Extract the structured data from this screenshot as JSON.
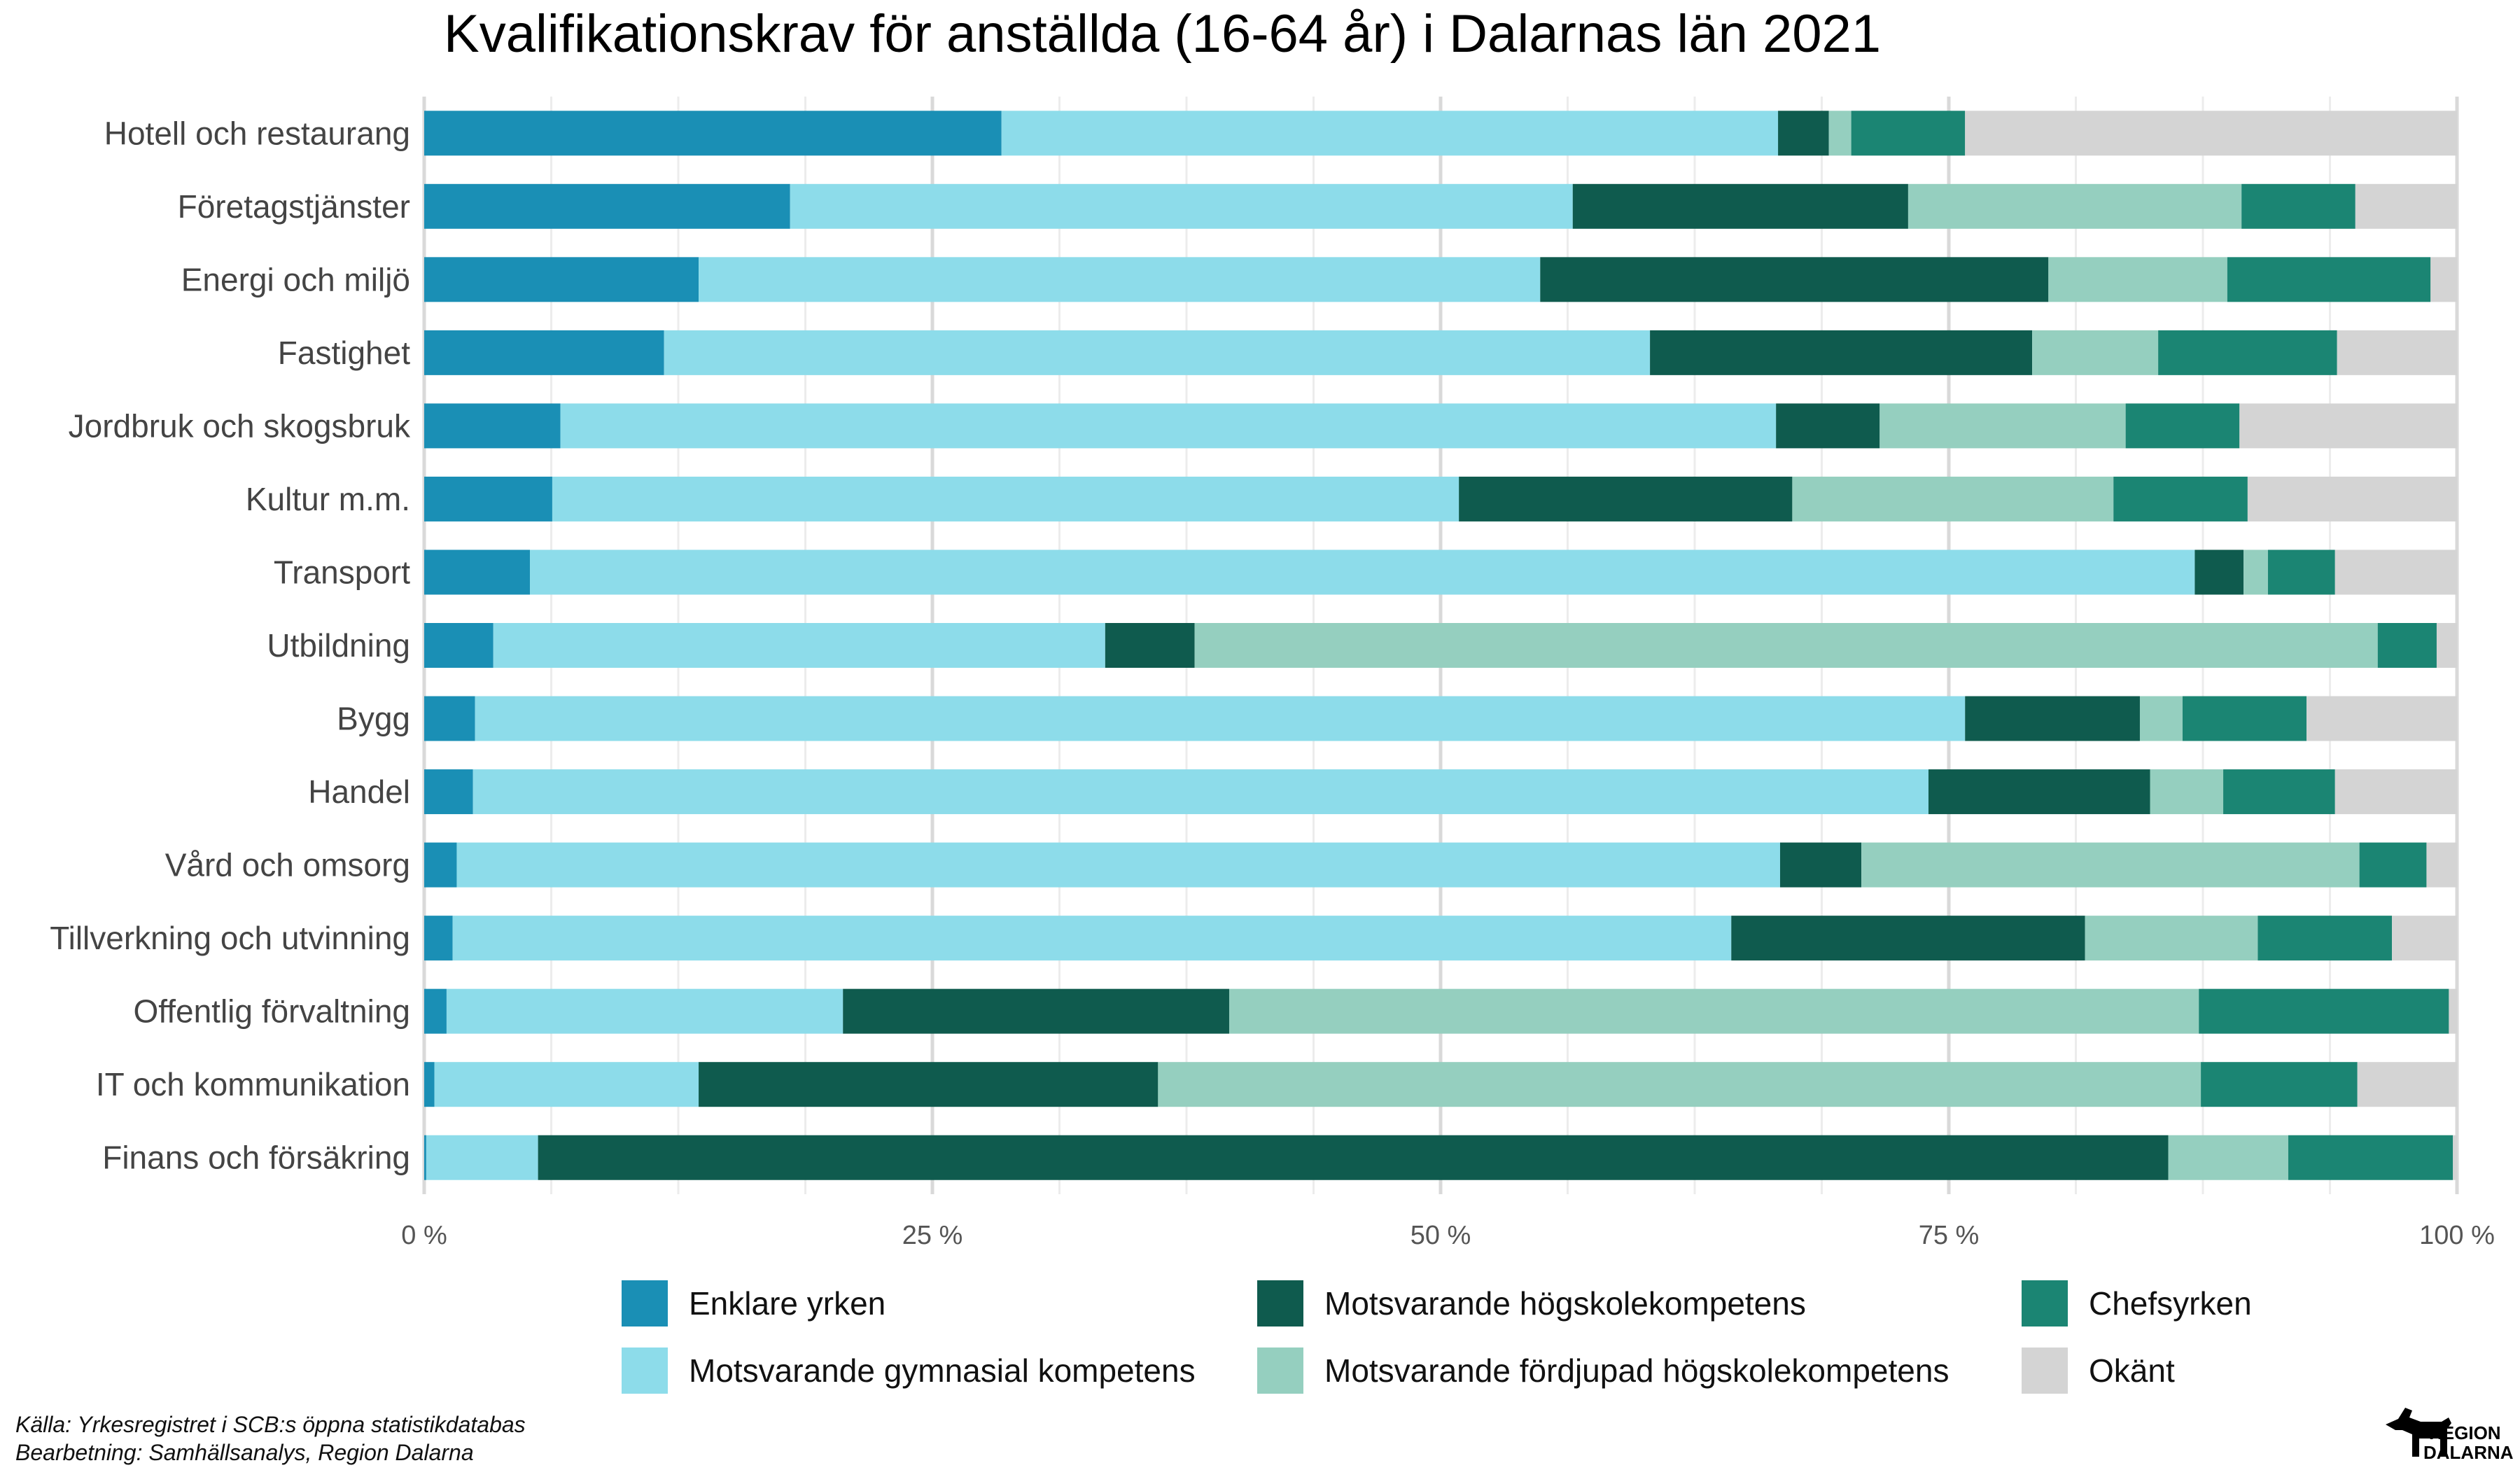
{
  "chart_data": {
    "type": "bar",
    "orientation": "horizontal",
    "stacked": true,
    "title": "Kvalifikationskrav för anställda (16-64 år) i Dalarnas län 2021",
    "xlabel": "",
    "ylabel": "",
    "xlim": [
      0,
      100
    ],
    "x_ticks": [
      "0 %",
      "25 %",
      "50 %",
      "75 %",
      "100 %"
    ],
    "grid": true,
    "legend_position": "bottom",
    "categories": [
      "Hotell och restaurang",
      "Företagstjänster",
      "Energi och miljö",
      "Fastighet",
      "Jordbruk och skogsbruk",
      "Kultur m.m.",
      "Transport",
      "Utbildning",
      "Bygg",
      "Handel",
      "Vård och omsorg",
      "Tillverkning och utvinning",
      "Offentlig förvaltning",
      "IT och kommunikation",
      "Finans och försäkring"
    ],
    "series": [
      {
        "name": "Enklare yrken",
        "color": "#1a8fb5",
        "values": [
          28.4,
          18.0,
          13.5,
          11.8,
          6.7,
          6.3,
          5.2,
          3.4,
          2.5,
          2.4,
          1.6,
          1.4,
          1.1,
          0.5,
          0.1
        ]
      },
      {
        "name": "Motsvarande gymnasial kompetens",
        "color": "#8ddcea",
        "values": [
          38.2,
          38.5,
          41.4,
          48.5,
          59.8,
          44.6,
          81.9,
          30.1,
          73.3,
          71.6,
          65.1,
          62.9,
          19.5,
          13.0,
          5.5
        ]
      },
      {
        "name": "Motsvarande högskolekompetens",
        "color": "#0f5b4e",
        "values": [
          2.5,
          16.5,
          25.0,
          18.8,
          5.1,
          16.4,
          2.4,
          4.4,
          8.6,
          10.9,
          4.0,
          17.4,
          19.0,
          22.6,
          80.2
        ]
      },
      {
        "name": "Motsvarande fördjupad högskolekompetens",
        "color": "#95cfbf",
        "values": [
          1.1,
          16.4,
          8.8,
          6.2,
          12.1,
          15.8,
          1.2,
          58.2,
          2.1,
          3.6,
          24.5,
          8.5,
          47.7,
          51.3,
          5.9
        ]
      },
      {
        "name": "Chefsyrken",
        "color": "#1b8573",
        "values": [
          5.6,
          5.6,
          10.0,
          8.8,
          5.6,
          6.6,
          3.3,
          2.9,
          6.1,
          5.5,
          3.3,
          6.6,
          12.3,
          7.7,
          8.1
        ]
      },
      {
        "name": "Okänt",
        "color": "#d4d4d4",
        "values": [
          24.2,
          5.0,
          1.3,
          5.9,
          10.7,
          10.3,
          6.0,
          1.0,
          7.4,
          6.0,
          1.5,
          3.2,
          0.4,
          4.9,
          0.2
        ]
      }
    ]
  },
  "source": {
    "line1": "Källa: Yrkesregistret i SCB:s öppna statistikdatabas",
    "line2": "Bearbetning: Samhällsanalys, Region Dalarna"
  },
  "logo": {
    "line1": "REGION",
    "line2": "DALARNA",
    "icon": "dalahorse-icon"
  }
}
